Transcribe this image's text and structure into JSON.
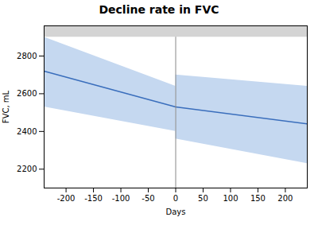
{
  "chart_data": {
    "type": "line",
    "title": "Decline rate in FVC",
    "xlabel": "Days",
    "ylabel": "FVC, mL",
    "xlim": [
      -240,
      240
    ],
    "ylim": [
      2100,
      2960
    ],
    "xticks": [
      -200,
      -150,
      -100,
      -50,
      0,
      50,
      100,
      150,
      200
    ],
    "yticks": [
      2200,
      2400,
      2600,
      2800
    ],
    "series": [
      {
        "type": "area",
        "color": "#c5d8f0",
        "x": [
          -240,
          0
        ],
        "lower": [
          2530,
          2400
        ],
        "upper": [
          2900,
          2640
        ]
      },
      {
        "type": "area",
        "color": "#c5d8f0",
        "x": [
          0,
          240
        ],
        "lower": [
          2360,
          2230
        ],
        "upper": [
          2700,
          2640
        ]
      },
      {
        "type": "line",
        "color": "#3a6ebc",
        "x": [
          -240,
          0
        ],
        "values": [
          2720,
          2530
        ]
      },
      {
        "type": "line",
        "color": "#3a6ebc",
        "x": [
          0,
          240
        ],
        "values": [
          2530,
          2440
        ]
      }
    ],
    "vlines": [
      {
        "x": 0,
        "color": "#888888"
      }
    ],
    "bands": [
      {
        "y": [
          2900,
          2960
        ],
        "color": "#d4d4d4"
      }
    ]
  }
}
